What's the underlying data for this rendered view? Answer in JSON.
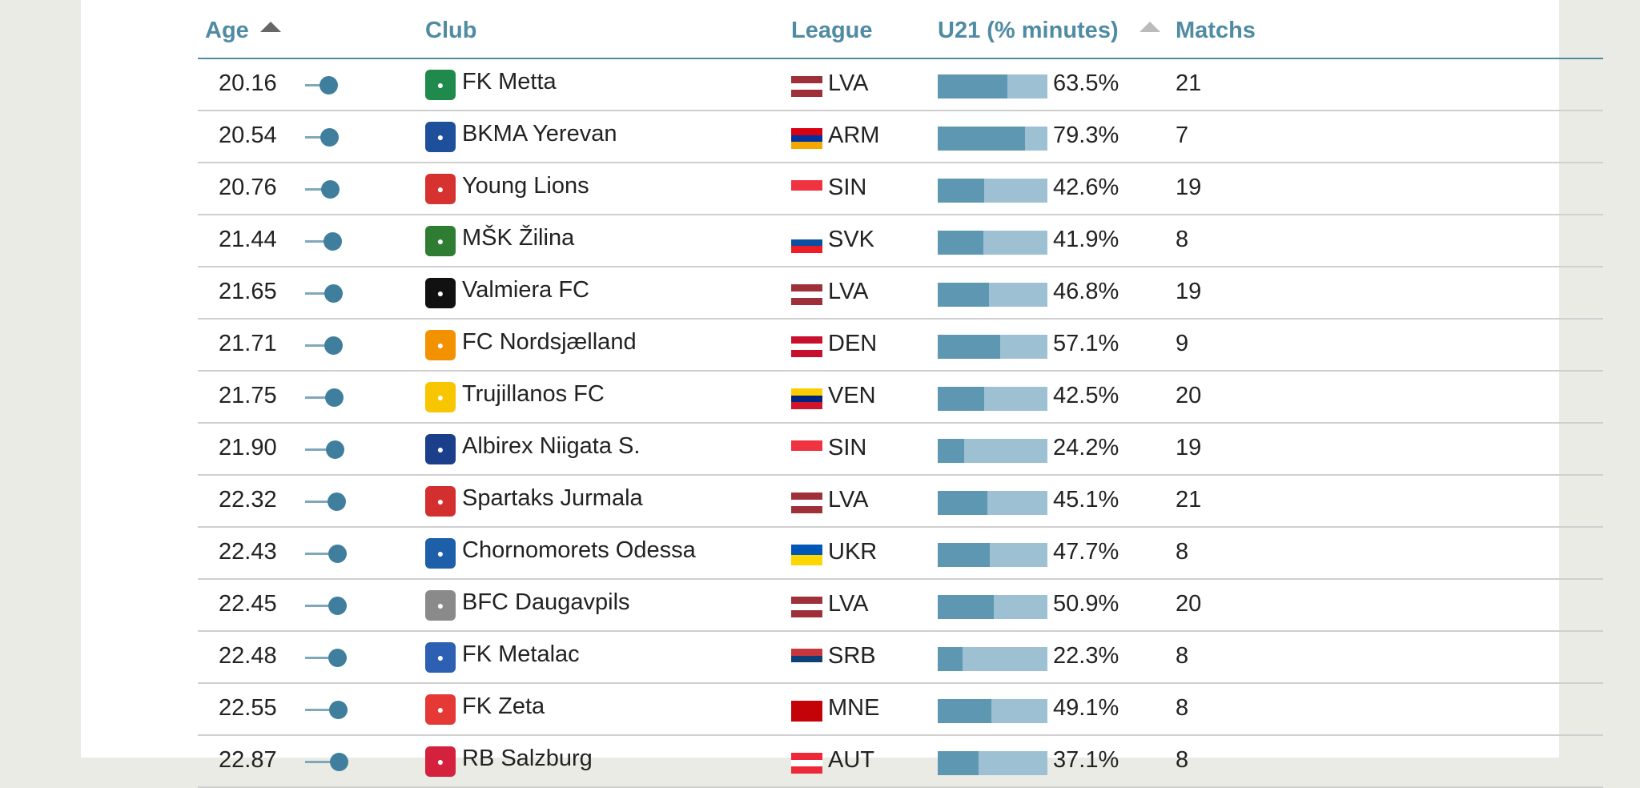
{
  "headers": {
    "age": "Age",
    "club": "Club",
    "league": "League",
    "u21": "U21 (% minutes)",
    "matchs": "Matchs"
  },
  "rows": [
    {
      "age": "20.16",
      "club": "FK Metta",
      "league": "LVA",
      "pct": "63.5%",
      "share": 0.635,
      "matchs": "21",
      "dot": 0.1,
      "logo_color": "#1f8a4c",
      "flag": [
        "#9e3039",
        "#ffffff",
        "#9e3039"
      ]
    },
    {
      "age": "20.54",
      "club": "BKMA Yerevan",
      "league": "ARM",
      "pct": "79.3%",
      "share": 0.793,
      "matchs": "7",
      "dot": 0.12,
      "logo_color": "#1e4f9b",
      "flag": [
        "#d90012",
        "#0033a0",
        "#f2a800"
      ]
    },
    {
      "age": "20.76",
      "club": "Young Lions",
      "league": "SIN",
      "pct": "42.6%",
      "share": 0.426,
      "matchs": "19",
      "dot": 0.14,
      "logo_color": "#d6322f",
      "flag": [
        "#ef3340",
        "#ffffff"
      ]
    },
    {
      "age": "21.44",
      "club": "MŠK Žilina",
      "league": "SVK",
      "pct": "41.9%",
      "share": 0.419,
      "matchs": "8",
      "dot": 0.22,
      "logo_color": "#2e7d32",
      "flag": [
        "#ffffff",
        "#0b4ea2",
        "#ee1c25"
      ]
    },
    {
      "age": "21.65",
      "club": "Valmiera FC",
      "league": "LVA",
      "pct": "46.8%",
      "share": 0.468,
      "matchs": "19",
      "dot": 0.25,
      "logo_color": "#111111",
      "flag": [
        "#9e3039",
        "#ffffff",
        "#9e3039"
      ]
    },
    {
      "age": "21.71",
      "club": "FC Nordsjælland",
      "league": "DEN",
      "pct": "57.1%",
      "share": 0.571,
      "matchs": "9",
      "dot": 0.26,
      "logo_color": "#f39200",
      "flag": [
        "#c8102e",
        "#ffffff",
        "#c8102e"
      ]
    },
    {
      "age": "21.75",
      "club": "Trujillanos FC",
      "league": "VEN",
      "pct": "42.5%",
      "share": 0.425,
      "matchs": "20",
      "dot": 0.27,
      "logo_color": "#f7c600",
      "flag": [
        "#ffcc00",
        "#00247d",
        "#cf142b"
      ]
    },
    {
      "age": "21.90",
      "club": "Albirex Niigata S.",
      "league": "SIN",
      "pct": "24.2%",
      "share": 0.242,
      "matchs": "19",
      "dot": 0.29,
      "logo_color": "#1b3f8b",
      "flag": [
        "#ef3340",
        "#ffffff"
      ]
    },
    {
      "age": "22.32",
      "club": "Spartaks Jurmala",
      "league": "LVA",
      "pct": "45.1%",
      "share": 0.451,
      "matchs": "21",
      "dot": 0.35,
      "logo_color": "#d32f2f",
      "flag": [
        "#9e3039",
        "#ffffff",
        "#9e3039"
      ]
    },
    {
      "age": "22.43",
      "club": "Chornomorets Odessa",
      "league": "UKR",
      "pct": "47.7%",
      "share": 0.477,
      "matchs": "8",
      "dot": 0.37,
      "logo_color": "#1d5fa8",
      "flag": [
        "#0057b7",
        "#ffd700"
      ]
    },
    {
      "age": "22.45",
      "club": "BFC Daugavpils",
      "league": "LVA",
      "pct": "50.9%",
      "share": 0.509,
      "matchs": "20",
      "dot": 0.37,
      "logo_color": "#8a8a8a",
      "flag": [
        "#9e3039",
        "#ffffff",
        "#9e3039"
      ]
    },
    {
      "age": "22.48",
      "club": "FK Metalac",
      "league": "SRB",
      "pct": "22.3%",
      "share": 0.223,
      "matchs": "8",
      "dot": 0.38,
      "logo_color": "#2d5fb3",
      "flag": [
        "#c6363c",
        "#0c4076",
        "#ffffff"
      ]
    },
    {
      "age": "22.55",
      "club": "FK Zeta",
      "league": "MNE",
      "pct": "49.1%",
      "share": 0.491,
      "matchs": "8",
      "dot": 0.39,
      "logo_color": "#e53935",
      "flag": [
        "#c40308",
        "#c40308",
        "#c40308"
      ]
    },
    {
      "age": "22.87",
      "club": "RB Salzburg",
      "league": "AUT",
      "pct": "37.1%",
      "share": 0.371,
      "matchs": "8",
      "dot": 0.43,
      "logo_color": "#d4213d",
      "flag": [
        "#ed2939",
        "#ffffff",
        "#ed2939"
      ]
    }
  ]
}
